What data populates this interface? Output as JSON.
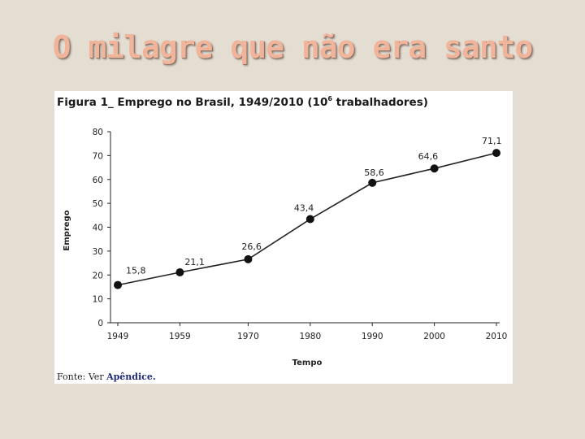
{
  "slide": {
    "title": "O milagre que não era santo"
  },
  "figure": {
    "title_main": "Figura 1_ Emprego no Brasil, 1949/2010 (10",
    "title_sup": "6",
    "title_end": " trabalhadores)",
    "source_prefix": "Fonte: Ver ",
    "source_link": "Apêndice."
  },
  "chart_data": {
    "type": "line",
    "title": "Figura 1_ Emprego no Brasil, 1949/2010 (10^6 trabalhadores)",
    "xlabel": "Tempo",
    "ylabel": "Emprego",
    "x": [
      1949,
      1959,
      1970,
      1980,
      1990,
      2000,
      2010
    ],
    "x_tick_labels": [
      "1949",
      "1959",
      "1970",
      "1980",
      "1990",
      "2000",
      "2010"
    ],
    "y": [
      15.8,
      21.1,
      26.6,
      43.4,
      58.6,
      64.6,
      71.1
    ],
    "data_labels": [
      "15,8",
      "21,1",
      "26,6",
      "43,4",
      "58,6",
      "64,6",
      "71,1"
    ],
    "ylim": [
      0,
      80
    ],
    "y_ticks": [
      0,
      10,
      20,
      30,
      40,
      50,
      60,
      70,
      80
    ],
    "grid": false,
    "legend": "none",
    "line_color": "#222222"
  }
}
